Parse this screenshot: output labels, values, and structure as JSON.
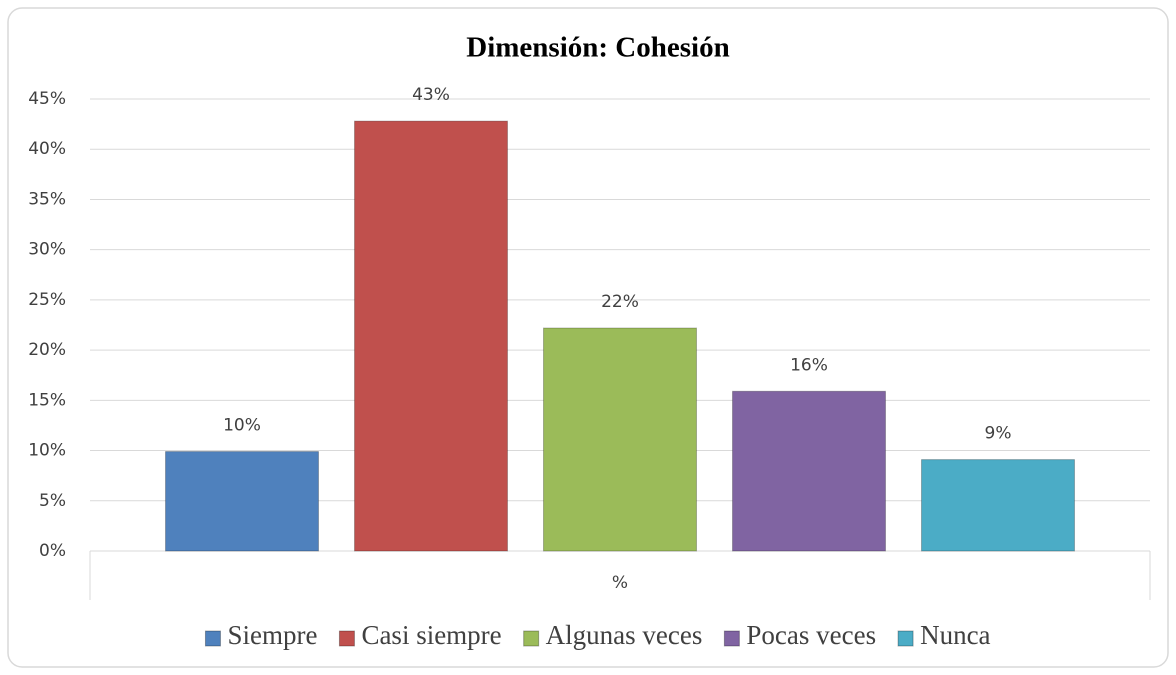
{
  "chart_data": {
    "type": "bar",
    "title": "Dimensión: Cohesión",
    "categories": [
      "%"
    ],
    "series": [
      {
        "name": "Siempre",
        "color": "#4f81bd",
        "values": [
          9.9
        ],
        "value_labels": [
          "10%"
        ]
      },
      {
        "name": "Casi siempre",
        "color": "#c0504d",
        "values": [
          42.8
        ],
        "value_labels": [
          "43%"
        ]
      },
      {
        "name": "Algunas veces",
        "color": "#9bbb59",
        "values": [
          22.2
        ],
        "value_labels": [
          "22%"
        ]
      },
      {
        "name": "Pocas veces",
        "color": "#8064a2",
        "values": [
          15.9
        ],
        "value_labels": [
          "16%"
        ]
      },
      {
        "name": "Nunca",
        "color": "#4bacc6",
        "values": [
          9.1
        ],
        "value_labels": [
          "9%"
        ]
      }
    ],
    "ylim": [
      0,
      45
    ],
    "yticks": [
      {
        "value": 0,
        "label": "0%"
      },
      {
        "value": 5,
        "label": "5%"
      },
      {
        "value": 10,
        "label": "10%"
      },
      {
        "value": 15,
        "label": "15%"
      },
      {
        "value": 20,
        "label": "20%"
      },
      {
        "value": 25,
        "label": "25%"
      },
      {
        "value": 30,
        "label": "30%"
      },
      {
        "value": 35,
        "label": "35%"
      },
      {
        "value": 40,
        "label": "40%"
      },
      {
        "value": 45,
        "label": "45%"
      }
    ],
    "grid": true,
    "legend": "bottom"
  }
}
